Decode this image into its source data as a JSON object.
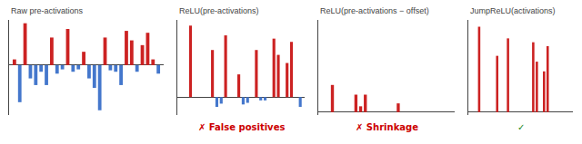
{
  "chart_data": [
    {
      "type": "bar",
      "title": "Raw pre-activations",
      "values": [
        0.12,
        -0.78,
        0.88,
        -0.28,
        -0.42,
        -0.14,
        -0.42,
        0.58,
        -0.18,
        -0.09,
        0.76,
        -0.14,
        -0.09,
        0.28,
        -0.28,
        -0.48,
        -0.95,
        0.58,
        -0.11,
        -0.14,
        -0.42,
        0.72,
        0.52,
        -0.14,
        0.42,
        0.68,
        0.12,
        -0.18
      ],
      "colors": [
        "#cc2222",
        "#4477cc",
        "#cc2222",
        "#4477cc",
        "#4477cc",
        "#4477cc",
        "#4477cc",
        "#cc2222",
        "#4477cc",
        "#4477cc",
        "#cc2222",
        "#4477cc",
        "#4477cc",
        "#cc2222",
        "#4477cc",
        "#4477cc",
        "#4477cc",
        "#cc2222",
        "#4477cc",
        "#4477cc",
        "#4477cc",
        "#cc2222",
        "#cc2222",
        "#4477cc",
        "#cc2222",
        "#cc2222",
        "#cc2222",
        "#4477cc"
      ],
      "ylim": [
        -1.05,
        0.95
      ],
      "tick_labels": false,
      "grid": false
    },
    {
      "type": "bar",
      "title": "ReLU(pre-activations)",
      "values": [
        0.0,
        0.0,
        0.88,
        0.0,
        0.0,
        0.0,
        0.0,
        0.58,
        -0.12,
        -0.08,
        0.76,
        0.0,
        0.0,
        0.28,
        -0.09,
        -0.07,
        0.0,
        0.58,
        -0.04,
        -0.04,
        0.0,
        0.72,
        0.52,
        0.0,
        0.42,
        0.68,
        0.0,
        -0.12
      ],
      "colors": [
        "#cc2222",
        "#cc2222",
        "#cc2222",
        "#cc2222",
        "#cc2222",
        "#cc2222",
        "#cc2222",
        "#cc2222",
        "#4477cc",
        "#4477cc",
        "#cc2222",
        "#cc2222",
        "#cc2222",
        "#cc2222",
        "#4477cc",
        "#4477cc",
        "#cc2222",
        "#cc2222",
        "#4477cc",
        "#4477cc",
        "#cc2222",
        "#cc2222",
        "#cc2222",
        "#cc2222",
        "#cc2222",
        "#cc2222",
        "#cc2222",
        "#4477cc"
      ],
      "ylim": [
        -0.22,
        0.95
      ],
      "tick_labels": false,
      "grid": false,
      "annotations": [
        {
          "text": "✗ False positives",
          "color": "#cc0000"
        }
      ]
    },
    {
      "type": "bar",
      "title": "ReLU(pre-activations − offset)",
      "values": [
        0.0,
        0.0,
        0.28,
        0.0,
        0.0,
        0.0,
        0.0,
        0.18,
        0.06,
        0.18,
        0.0,
        0.0,
        0.0,
        0.0,
        0.0,
        0.0,
        0.09,
        0.0,
        0.0,
        0.0,
        0.0,
        0.0,
        0.0,
        0.0,
        0.0,
        0.0,
        0.0,
        0.0
      ],
      "color": "#cc2222",
      "ylim": [
        -0.03,
        0.95
      ],
      "tick_labels": false,
      "grid": false,
      "annotations": [
        {
          "text": "✗ Shrinkage",
          "color": "#cc0000"
        }
      ]
    },
    {
      "type": "bar",
      "title": "JumpReLU(activations)",
      "values": [
        0.0,
        0.0,
        0.88,
        0.0,
        0.0,
        0.0,
        0.0,
        0.58,
        0.0,
        0.0,
        0.76,
        0.0,
        0.0,
        0.0,
        0.0,
        0.0,
        0.0,
        0.72,
        0.52,
        0.0,
        0.42,
        0.68,
        0.0,
        0.0,
        0.0,
        0.0,
        0.0,
        0.0
      ],
      "color": "#cc2222",
      "ylim": [
        -0.03,
        0.95
      ],
      "tick_labels": false,
      "grid": false,
      "annotations": [
        {
          "text": "✓",
          "color": "#228822"
        }
      ]
    }
  ]
}
